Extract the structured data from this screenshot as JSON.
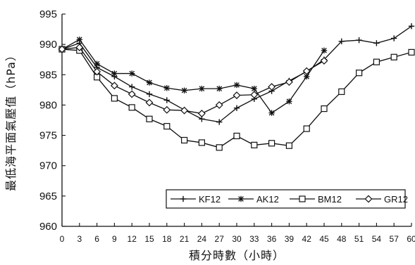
{
  "chart_data": {
    "type": "line",
    "xlabel": "積分時數（小時）",
    "ylabel": "最低海平面氣壓值（hPa）",
    "xlim": [
      0,
      60
    ],
    "ylim": [
      960,
      995
    ],
    "x_ticks": [
      "0",
      "3",
      "6",
      "9",
      "12",
      "15",
      "18",
      "21",
      "24",
      "27",
      "30",
      "33",
      "36",
      "39",
      "42",
      "45",
      "48",
      "51",
      "54",
      "57",
      "60"
    ],
    "y_ticks": [
      "960",
      "965",
      "970",
      "975",
      "980",
      "985",
      "990",
      "995"
    ],
    "grid": false,
    "legend_position": "bottom-right",
    "series": [
      {
        "name": "KF12",
        "marker": "plus",
        "x": [
          0,
          3,
          6,
          9,
          12,
          15,
          18,
          21,
          24,
          27,
          30,
          33,
          36,
          39,
          42,
          45,
          48,
          51,
          54,
          57,
          60
        ],
        "values": [
          989.2,
          990.2,
          986.2,
          984.7,
          983.0,
          981.8,
          980.8,
          979.2,
          977.7,
          977.2,
          979.5,
          981.0,
          982.3,
          984.0,
          985.5,
          987.5,
          990.5,
          990.7,
          990.2,
          991.0,
          993.0
        ]
      },
      {
        "name": "AK12",
        "marker": "star",
        "x": [
          0,
          3,
          6,
          9,
          12,
          15,
          18,
          21,
          24,
          27,
          30,
          33,
          36,
          39,
          42,
          45
        ],
        "values": [
          989.2,
          990.8,
          986.8,
          985.2,
          985.2,
          983.7,
          982.8,
          982.4,
          982.7,
          982.7,
          983.3,
          982.7,
          978.7,
          980.6,
          984.7,
          989.0
        ]
      },
      {
        "name": "BM12",
        "marker": "square",
        "x": [
          0,
          3,
          6,
          9,
          12,
          15,
          18,
          21,
          24,
          27,
          30,
          33,
          36,
          39,
          42,
          45,
          48,
          51,
          54,
          57,
          60
        ],
        "values": [
          989.2,
          989.0,
          984.6,
          981.1,
          979.6,
          977.7,
          976.5,
          974.2,
          973.8,
          973.0,
          974.9,
          973.4,
          973.7,
          973.3,
          976.1,
          979.4,
          982.2,
          985.3,
          987.1,
          987.9,
          988.7
        ]
      },
      {
        "name": "GR12",
        "marker": "diamond",
        "x": [
          0,
          3,
          6,
          9,
          12,
          15,
          18,
          21,
          24,
          27,
          30,
          33,
          36,
          39,
          42,
          45
        ],
        "values": [
          989.2,
          989.5,
          985.5,
          983.2,
          981.8,
          980.4,
          979.2,
          979.1,
          978.6,
          980.0,
          981.6,
          981.7,
          983.0,
          983.8,
          985.6,
          987.3
        ]
      }
    ]
  }
}
